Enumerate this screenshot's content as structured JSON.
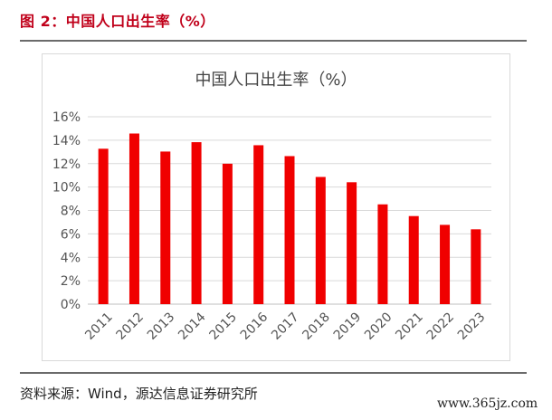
{
  "header": {
    "figure_title": "图 2：中国人口出生率（%）"
  },
  "footer": {
    "source": "资料来源：Wind，源达信息证券研究所",
    "watermark": "www.365jz.com"
  },
  "colors": {
    "bar": "#f00000",
    "title_accent": "#c0001a",
    "grid": "#d9d9d9"
  },
  "chart_data": {
    "type": "bar",
    "title": "中国人口出生率（%）",
    "xlabel": "",
    "ylabel": "",
    "categories": [
      "2011",
      "2012",
      "2013",
      "2014",
      "2015",
      "2016",
      "2017",
      "2018",
      "2019",
      "2020",
      "2021",
      "2022",
      "2023"
    ],
    "values": [
      13.27,
      14.57,
      13.03,
      13.83,
      11.99,
      13.57,
      12.64,
      10.86,
      10.41,
      8.52,
      7.52,
      6.77,
      6.39
    ],
    "ylim": [
      0,
      16
    ],
    "yticks": [
      "0%",
      "2%",
      "4%",
      "6%",
      "8%",
      "10%",
      "12%",
      "14%",
      "16%"
    ],
    "grid": true,
    "legend": "none"
  }
}
